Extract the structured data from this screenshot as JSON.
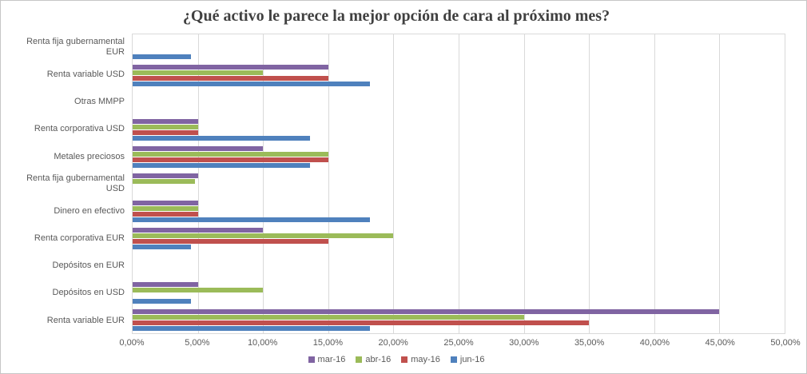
{
  "chart_data": {
    "type": "bar",
    "orientation": "horizontal",
    "title": "¿Qué activo le parece la mejor opción de cara al próximo mes?",
    "categories": [
      "Renta fija gubernamental EUR",
      "Renta variable USD",
      "Otras MMPP",
      "Renta corporativa USD",
      "Metales preciosos",
      "Renta fija gubernamental USD",
      "Dinero en efectivo",
      "Renta corporativa EUR",
      "Depósitos en EUR",
      "Depósitos en USD",
      "Renta variable EUR"
    ],
    "series": [
      {
        "name": "mar-16",
        "color": "#8064A2",
        "values": [
          0,
          15,
          0,
          5,
          10,
          5,
          5,
          10,
          0,
          5,
          45
        ]
      },
      {
        "name": "abr-16",
        "color": "#9BBB59",
        "values": [
          0,
          10,
          0,
          5,
          15,
          4.8,
          5,
          20,
          0,
          10,
          30
        ]
      },
      {
        "name": "may-16",
        "color": "#C0504D",
        "values": [
          0,
          15,
          0,
          5,
          15,
          0,
          5,
          15,
          0,
          0,
          35
        ]
      },
      {
        "name": "jun-16",
        "color": "#4F81BD",
        "values": [
          4.5,
          18.2,
          0,
          13.6,
          13.6,
          0,
          18.2,
          4.5,
          0,
          4.5,
          18.2
        ]
      }
    ],
    "xlim": [
      0,
      50
    ],
    "x_tick_step": 5,
    "x_tick_labels": [
      "0,00%",
      "5,00%",
      "10,00%",
      "15,00%",
      "20,00%",
      "25,00%",
      "30,00%",
      "35,00%",
      "40,00%",
      "45,00%",
      "50,00%"
    ],
    "x_tick_format": "percent",
    "grid": true,
    "gridline_color": "#d9d9d9",
    "plot_border_color": "#d9d9d9",
    "text_color": "#595959",
    "title_color": "#404040",
    "legend_position": "bottom",
    "legend": [
      "mar-16",
      "abr-16",
      "may-16",
      "jun-16"
    ]
  }
}
